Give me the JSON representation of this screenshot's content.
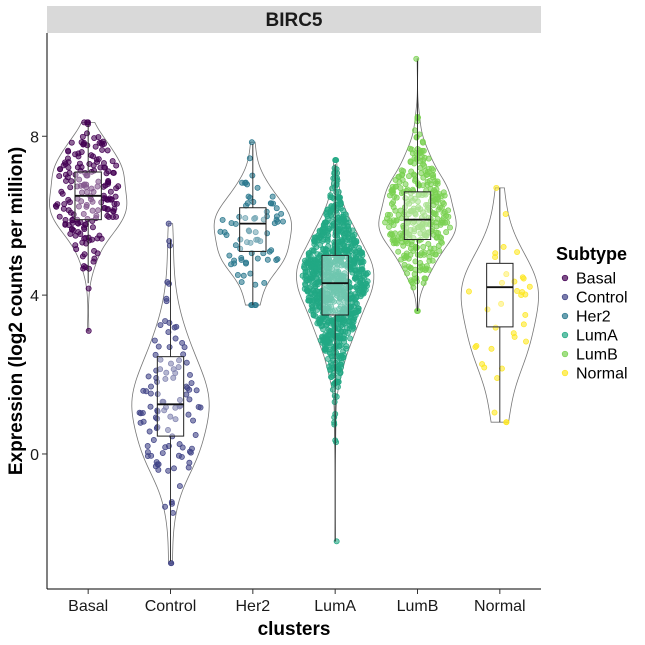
{
  "chart_data": {
    "type": "violin",
    "facet_title": "BIRC5",
    "xlabel": "clusters",
    "ylabel": "Expression (log2 counts per million)",
    "ylim": [
      -3.4,
      10.6
    ],
    "yticks": [
      0,
      4,
      8
    ],
    "legend": {
      "title": "Subtype",
      "position": "right"
    },
    "categories": [
      "Basal",
      "Control",
      "Her2",
      "LumA",
      "LumB",
      "Normal"
    ],
    "series": [
      {
        "name": "Basal",
        "color": "#440154",
        "n": 190,
        "min": 3.1,
        "q1": 5.9,
        "median": 6.5,
        "q3": 7.1,
        "max": 8.35,
        "whisker_low": 4.3,
        "whisker_high": 8.3
      },
      {
        "name": "Control",
        "color": "#414487",
        "n": 110,
        "min": -2.75,
        "q1": 0.45,
        "median": 1.25,
        "q3": 2.45,
        "max": 5.8,
        "whisker_low": -2.7,
        "whisker_high": 5.4
      },
      {
        "name": "Her2",
        "color": "#2A788E",
        "n": 75,
        "min": 3.75,
        "q1": 5.1,
        "median": 5.8,
        "q3": 6.2,
        "max": 7.85,
        "whisker_low": 3.75,
        "whisker_high": 7.8
      },
      {
        "name": "LumA",
        "color": "#22A884",
        "n": 900,
        "min": -2.2,
        "q1": 3.5,
        "median": 4.3,
        "q3": 5.0,
        "max": 7.4,
        "whisker_low": -2.2,
        "whisker_high": 7.3
      },
      {
        "name": "LumB",
        "color": "#7AD151",
        "n": 330,
        "min": 3.6,
        "q1": 5.4,
        "median": 5.9,
        "q3": 6.6,
        "max": 9.95,
        "whisker_low": 3.6,
        "whisker_high": 9.9
      },
      {
        "name": "Normal",
        "color": "#FDE725",
        "n": 35,
        "min": 0.8,
        "q1": 3.2,
        "median": 4.2,
        "q3": 4.8,
        "max": 6.7,
        "whisker_low": 0.8,
        "whisker_high": 6.7
      }
    ]
  }
}
